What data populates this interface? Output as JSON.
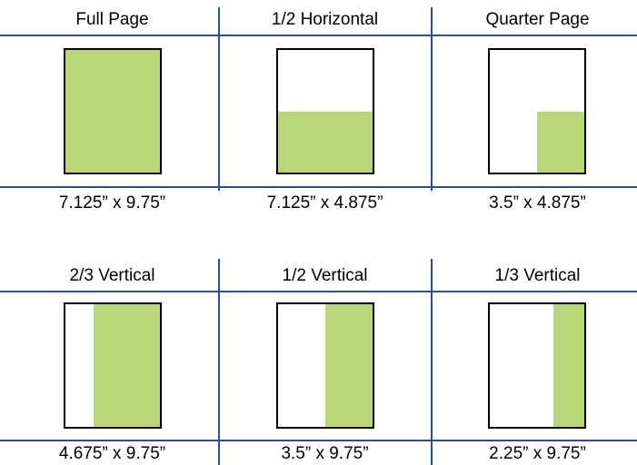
{
  "colors": {
    "fill": "#b9d678",
    "divider": "#2e4d8f",
    "border": "#000000"
  },
  "ad_sizes": [
    {
      "title": "Full Page",
      "dimensions": "7.125” x 9.75”",
      "coverage": "full page"
    },
    {
      "title": "1/2 Horizontal",
      "dimensions": "7.125” x 4.875”",
      "coverage": "bottom half"
    },
    {
      "title": "Quarter Page",
      "dimensions": "3.5” x 4.875”",
      "coverage": "bottom-right quarter"
    },
    {
      "title": "2/3 Vertical",
      "dimensions": "4.675” x 9.75”",
      "coverage": "right two thirds"
    },
    {
      "title": "1/2 Vertical",
      "dimensions": "3.5” x 9.75”",
      "coverage": "right half"
    },
    {
      "title": "1/3 Vertical",
      "dimensions": "2.25” x 9.75”",
      "coverage": "right third"
    }
  ]
}
